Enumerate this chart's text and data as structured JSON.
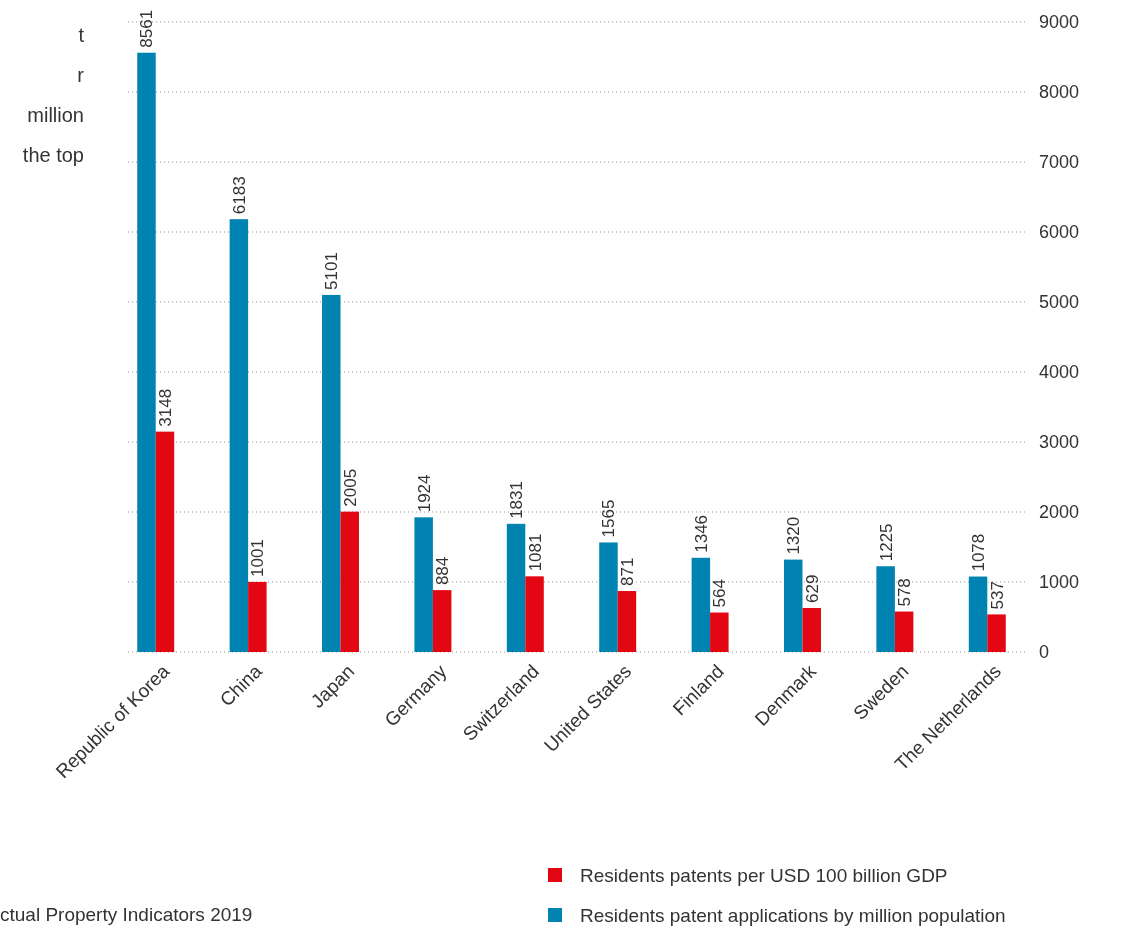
{
  "chart_data": {
    "type": "bar",
    "categories": [
      "Republic of Korea",
      "China",
      "Japan",
      "Germany",
      "Switzerland",
      "United States",
      "Finland",
      "Denmark",
      "Sweden",
      "The Netherlands"
    ],
    "series": [
      {
        "name": "Residents patent applications by million population",
        "color": "#0083b0",
        "values": [
          8561,
          6183,
          5101,
          1924,
          1831,
          1565,
          1346,
          1320,
          1225,
          1078
        ]
      },
      {
        "name": "Residents patents per USD 100 billion GDP",
        "color": "#e30613",
        "values": [
          3148,
          1001,
          2005,
          884,
          1081,
          871,
          564,
          629,
          578,
          537
        ]
      }
    ],
    "ylim": [
      0,
      9000
    ],
    "yticks": [
      0,
      1000,
      2000,
      3000,
      4000,
      5000,
      6000,
      7000,
      8000,
      9000
    ],
    "grid": "y",
    "data_labels": true,
    "legend": "bottom",
    "annotations": [
      "t",
      "r",
      " million",
      "the top",
      "ctual Property Indicators 2019"
    ]
  }
}
